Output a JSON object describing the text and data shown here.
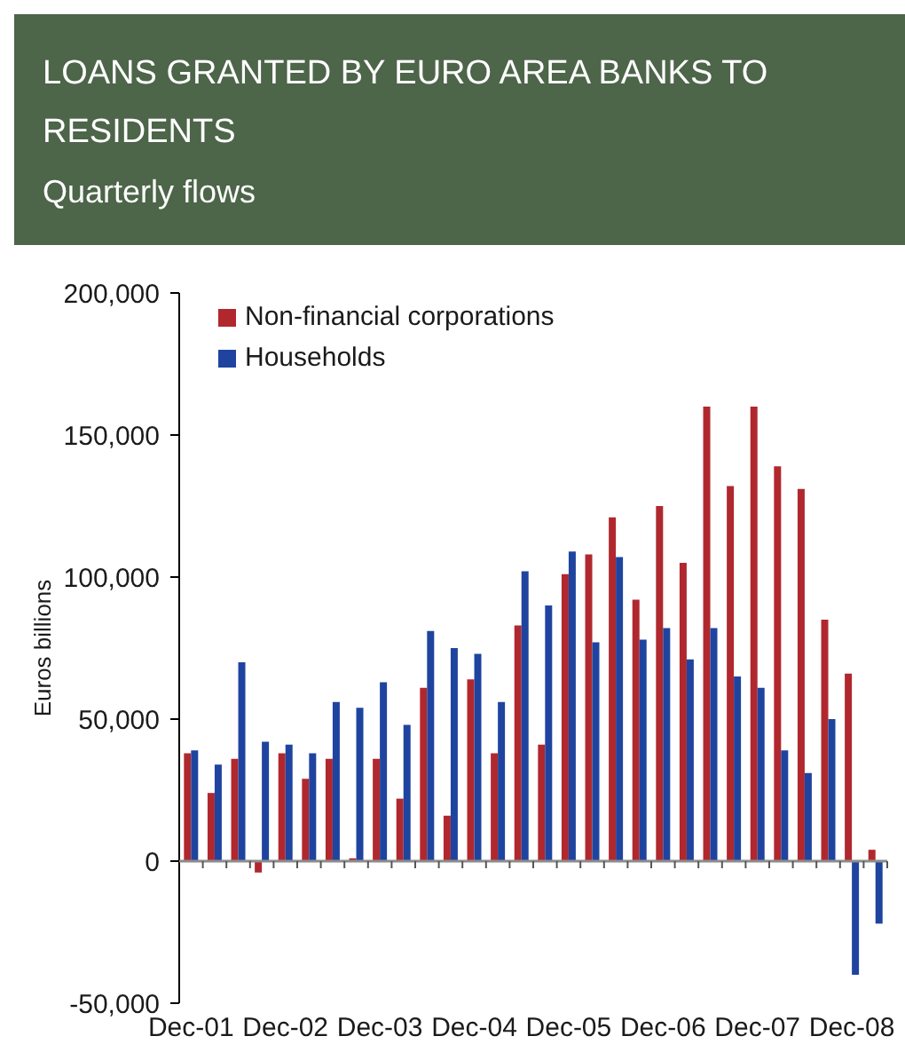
{
  "chart_data": {
    "type": "bar",
    "title": "LOANS GRANTED BY EURO AREA BANKS TO RESIDENTS",
    "subtitle": "Quarterly flows",
    "ylabel": "Euros billions",
    "categories": [
      "Dec-01",
      null,
      null,
      null,
      "Dec-02",
      null,
      null,
      null,
      "Dec-03",
      null,
      null,
      null,
      "Dec-04",
      null,
      null,
      null,
      "Dec-05",
      null,
      null,
      null,
      "Dec-06",
      null,
      null,
      null,
      "Dec-07",
      null,
      null,
      null,
      "Dec-08",
      null
    ],
    "series": [
      {
        "name": "Non-financial corporations",
        "color": "#b0282e",
        "values": [
          38000,
          24000,
          36000,
          -4000,
          38000,
          29000,
          36000,
          1000,
          36000,
          22000,
          61000,
          16000,
          64000,
          38000,
          83000,
          41000,
          101000,
          108000,
          121000,
          92000,
          125000,
          105000,
          160000,
          132000,
          160000,
          139000,
          131000,
          85000,
          66000,
          4000
        ]
      },
      {
        "name": "Households",
        "color": "#1f449f",
        "values": [
          39000,
          34000,
          70000,
          42000,
          41000,
          38000,
          56000,
          54000,
          63000,
          48000,
          81000,
          75000,
          73000,
          56000,
          102000,
          90000,
          109000,
          77000,
          107000,
          78000,
          82000,
          71000,
          82000,
          65000,
          61000,
          39000,
          31000,
          50000,
          -40000,
          -22000
        ]
      }
    ],
    "ylim": [
      -50000,
      200000
    ],
    "yticks": [
      {
        "value": -50000,
        "label": "-50,000"
      },
      {
        "value": 0,
        "label": "0"
      },
      {
        "value": 50000,
        "label": "50,000"
      },
      {
        "value": 100000,
        "label": "100,000"
      },
      {
        "value": 150000,
        "label": "150,000"
      },
      {
        "value": 200000,
        "label": "200,000"
      }
    ],
    "legend": "top left"
  }
}
